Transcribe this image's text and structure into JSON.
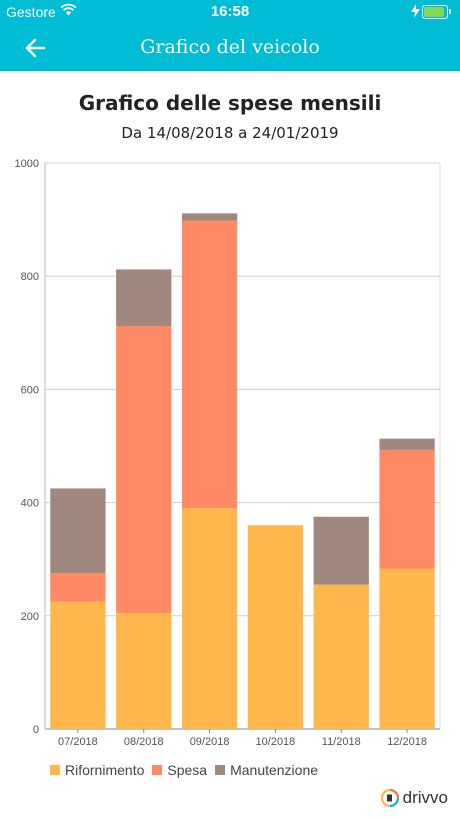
{
  "status_bar": {
    "carrier": "Gestore",
    "time": "16:58",
    "battery_level": 1.0
  },
  "app_bar": {
    "title": "Grafico del veicolo",
    "back_icon": "arrow-left-icon"
  },
  "chart_data": {
    "type": "bar",
    "stacked": true,
    "title": "Grafico delle spese mensili",
    "subtitle": "Da 14/08/2018 a 24/01/2019",
    "categories": [
      "07/2018",
      "08/2018",
      "09/2018",
      "10/2018",
      "11/2018",
      "12/2018"
    ],
    "series": [
      {
        "name": "Rifornimento",
        "color": "#ffb74d",
        "values": [
          225,
          205,
          390,
          360,
          255,
          283
        ]
      },
      {
        "name": "Spesa",
        "color": "#ff8a65",
        "values": [
          50,
          507,
          508,
          0,
          0,
          210
        ]
      },
      {
        "name": "Manutenzione",
        "color": "#a1887f",
        "values": [
          150,
          100,
          13,
          0,
          120,
          20
        ]
      }
    ],
    "yticks": [
      "0",
      "200",
      "400",
      "600",
      "800",
      "1000"
    ],
    "ylim": [
      0,
      1000
    ],
    "grid": true,
    "legend": "bottom-left"
  },
  "logo": {
    "text": "drivvo"
  }
}
